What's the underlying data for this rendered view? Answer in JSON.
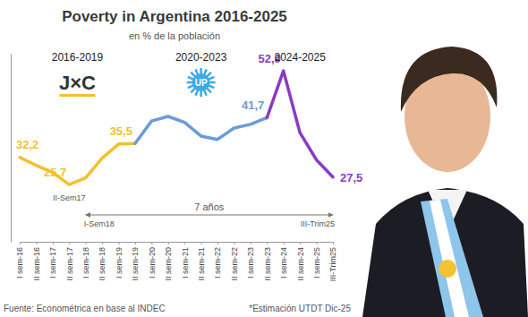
{
  "chart_data": {
    "type": "line",
    "title": "Poverty in Argentina 2016-2025",
    "subtitle": "en % de la población",
    "source": "Fuente: Econométrica en base al INDEC",
    "note": "*Estimación UTDT Dic-25",
    "categories": [
      "I sem-16",
      "II sem-16",
      "I sem-17",
      "II sem-17",
      "I sem-18",
      "II sem-18",
      "I sem-19",
      "II sem-19",
      "I sem-20",
      "II sem-20",
      "I sem-21",
      "II sem-21",
      "I sem-22",
      "II sem-22",
      "I sem-23",
      "II sem-23",
      "I sem-24",
      "II sem-24",
      "I sem-25",
      "III-Trim25"
    ],
    "series": [
      {
        "name": "2016-2019",
        "color": "#f2c12e",
        "values": [
          32.2,
          30.3,
          28.6,
          25.7,
          27.3,
          32.0,
          35.4,
          35.5,
          null,
          null,
          null,
          null,
          null,
          null,
          null,
          null,
          null,
          null,
          null,
          null
        ],
        "value_labels": [
          "32,2",
          null,
          null,
          "25,7",
          null,
          null,
          null,
          "35,5",
          null,
          null,
          null,
          null,
          null,
          null,
          null,
          null,
          null,
          null,
          null,
          null
        ]
      },
      {
        "name": "2020-2023",
        "color": "#6b9bd8",
        "values": [
          null,
          null,
          null,
          null,
          null,
          null,
          null,
          35.5,
          40.9,
          42.0,
          40.6,
          37.3,
          36.5,
          39.2,
          40.1,
          41.7,
          null,
          null,
          null,
          null
        ],
        "value_labels": [
          null,
          null,
          null,
          null,
          null,
          null,
          null,
          null,
          null,
          null,
          null,
          null,
          null,
          null,
          null,
          "41,7",
          null,
          null,
          null,
          null
        ]
      },
      {
        "name": "2024-2025",
        "color": "#8a3cc4",
        "values": [
          null,
          null,
          null,
          null,
          null,
          null,
          null,
          null,
          null,
          null,
          null,
          null,
          null,
          null,
          null,
          41.7,
          52.9,
          38.1,
          31.6,
          27.5
        ],
        "value_labels": [
          null,
          null,
          null,
          null,
          null,
          null,
          null,
          null,
          null,
          null,
          null,
          null,
          null,
          null,
          null,
          null,
          "52,9",
          null,
          null,
          "27,5"
        ]
      }
    ],
    "annotations": [
      {
        "text": "II-Sem17",
        "x": 3
      },
      {
        "text": "I-Sem18",
        "x": 4
      },
      {
        "text": "III-Trim25",
        "x": 19
      },
      {
        "text": "7 años",
        "from": 4,
        "to": 19
      },
      {
        "text": "J×C",
        "series": 0
      },
      {
        "text": "UP",
        "series": 1
      }
    ],
    "ylim": [
      12,
      57
    ],
    "yticks": [],
    "grid": false,
    "data_labels": true,
    "tick_labels": "x",
    "marker": "none",
    "line_style": "solid"
  }
}
